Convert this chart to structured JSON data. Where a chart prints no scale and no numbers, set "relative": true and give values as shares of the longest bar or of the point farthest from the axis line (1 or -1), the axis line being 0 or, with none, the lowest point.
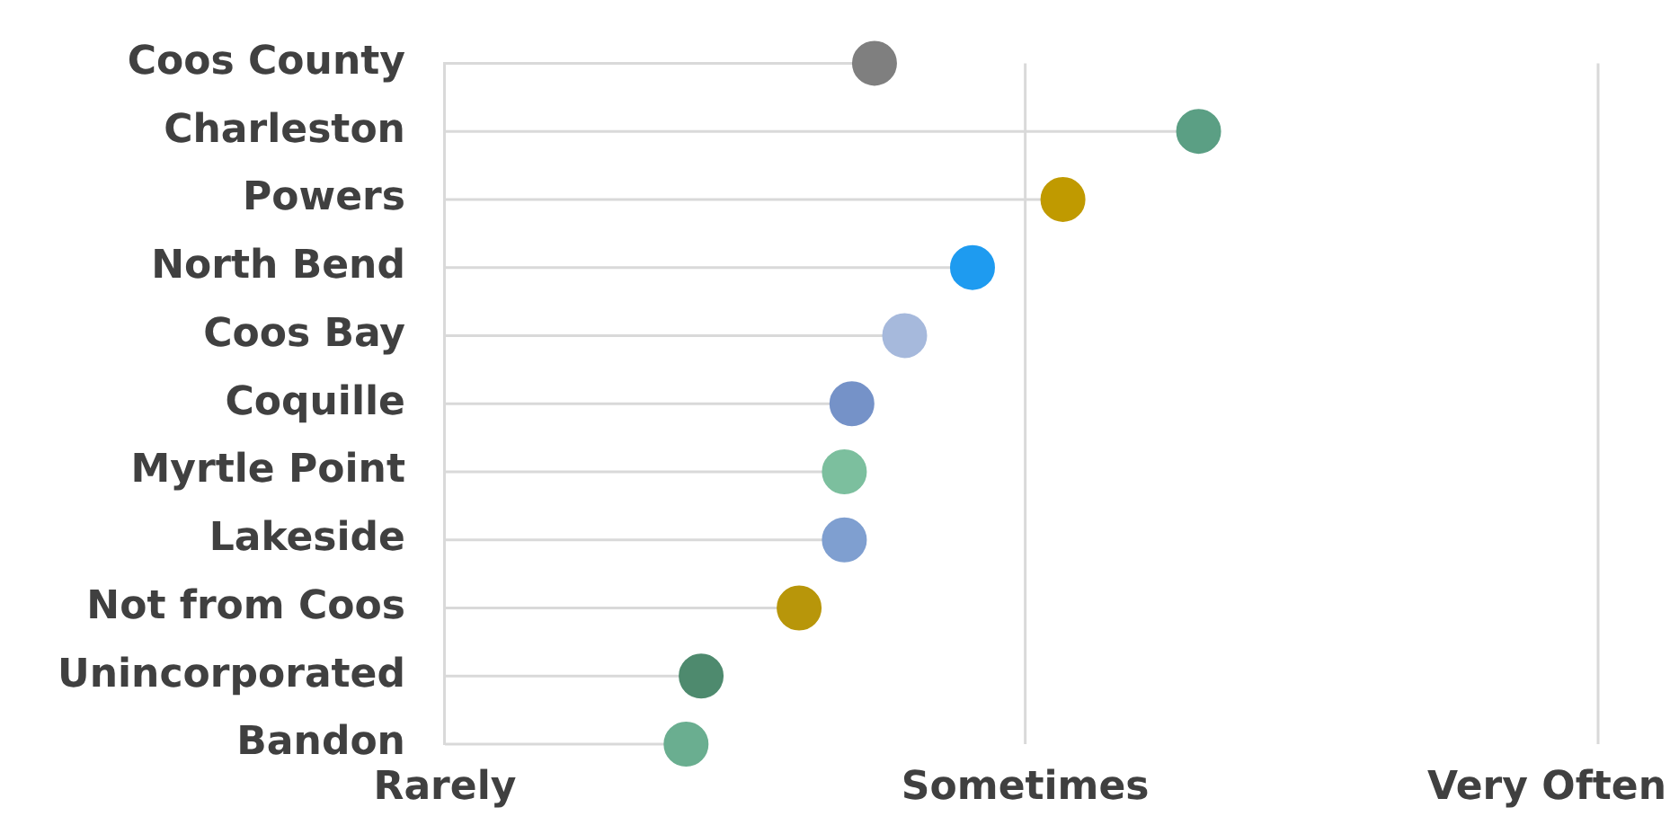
{
  "chart_data": {
    "type": "lollipop",
    "orientation": "horizontal",
    "relative": true,
    "categories": [
      "Coos County",
      "Charleston",
      "Powers",
      "North Bend",
      "Coos Bay",
      "Coquille",
      "Myrtle Point",
      "Lakeside",
      "Not from Coos",
      "Unincorporated",
      "Bandon"
    ],
    "values": [
      0.57,
      1,
      0.82,
      0.7,
      0.61,
      0.54,
      0.53,
      0.53,
      0.47,
      0.34,
      0.32
    ],
    "colors": [
      "#7f7f7f",
      "#5b9f84",
      "#c09a00",
      "#1e9bf0",
      "#a6b9dc",
      "#7592c8",
      "#7cbf9e",
      "#7f9fd0",
      "#b8960a",
      "#4e8a6e",
      "#6aae90"
    ],
    "annotations": [
      "Rarely"
    ],
    "ref_lines": [
      {
        "axis": "x",
        "value": 0.77,
        "label": "Sometimes",
        "color": "#d9d9d9"
      },
      {
        "axis": "x",
        "value": 1.53,
        "label": "Very Often",
        "color": "#d9d9d9"
      }
    ],
    "grid": "y",
    "legend": false,
    "marker": "circle"
  }
}
